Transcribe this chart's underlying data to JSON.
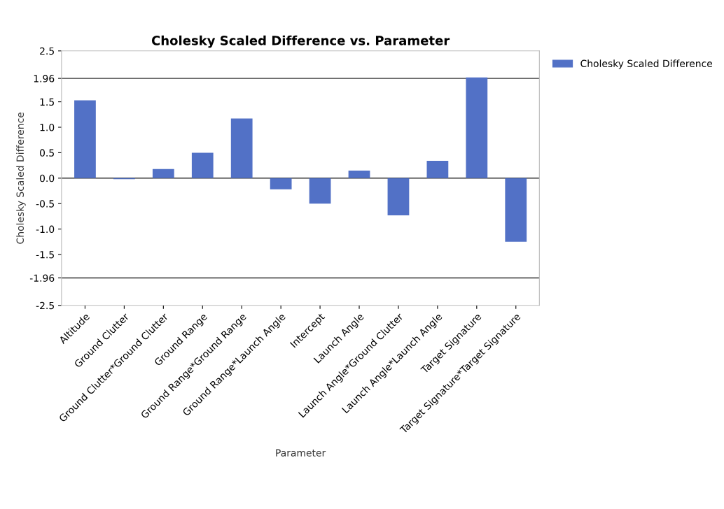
{
  "chart_data": {
    "type": "bar",
    "title": "Cholesky Scaled Difference vs. Parameter",
    "xlabel": "Parameter",
    "ylabel": "Cholesky Scaled Difference",
    "categories": [
      "Altitude",
      "Ground Clutter",
      "Ground Clutter*Ground Clutter",
      "Ground Range",
      "Ground Range*Ground Range",
      "Ground Range*Launch Angle",
      "Intercept",
      "Launch Angle",
      "Launch Angle*Ground Clutter",
      "Launch Angle*Launch Angle",
      "Target Signature",
      "Target Signature*Target Signature"
    ],
    "series": [
      {
        "name": "Cholesky Scaled Difference",
        "color": "#5271c6",
        "values": [
          1.53,
          -0.02,
          0.18,
          0.5,
          1.17,
          -0.22,
          -0.5,
          0.15,
          -0.73,
          0.34,
          1.98,
          -1.25
        ]
      }
    ],
    "ylim": [
      -2.5,
      2.5
    ],
    "yticks": [
      {
        "value": -2.5,
        "label": "-2.5"
      },
      {
        "value": -1.96,
        "label": "-1.96"
      },
      {
        "value": -1.5,
        "label": "-1.5"
      },
      {
        "value": -1.0,
        "label": "-1.0"
      },
      {
        "value": -0.5,
        "label": "-0.5"
      },
      {
        "value": 0.0,
        "label": "0.0"
      },
      {
        "value": 0.5,
        "label": "0.5"
      },
      {
        "value": 1.0,
        "label": "1.0"
      },
      {
        "value": 1.5,
        "label": "1.5"
      },
      {
        "value": 1.96,
        "label": "1.96"
      },
      {
        "value": 2.5,
        "label": "2.5"
      }
    ],
    "ref_lines": [
      {
        "axis": "y",
        "value": 1.96,
        "color": "#333333"
      },
      {
        "axis": "y",
        "value": 0,
        "color": "#333333"
      },
      {
        "axis": "y",
        "value": -1.96,
        "color": "#333333"
      }
    ],
    "grid": false,
    "legend": "top right"
  }
}
